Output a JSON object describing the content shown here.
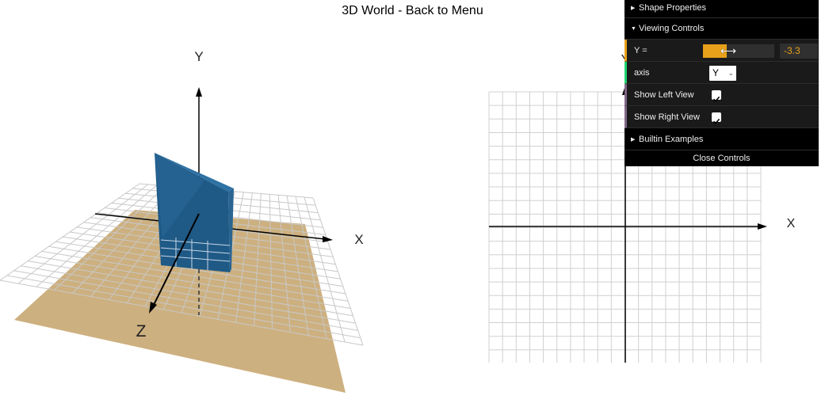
{
  "page": {
    "title": "3D World - Back to Menu"
  },
  "left_view": {
    "axis_labels": {
      "x": "X",
      "y": "Y",
      "z": "Z"
    },
    "colors": {
      "shape": "#2a6592",
      "plane": "#cdb07f",
      "grid": "#c8c8c8"
    }
  },
  "right_view": {
    "axis_labels": {
      "x": "X",
      "y": "Y"
    },
    "colors": {
      "grid": "#d0d0d0",
      "axis": "#000000"
    }
  },
  "controls": {
    "shape_properties_label": "Shape Properties",
    "viewing_controls_label": "Viewing Controls",
    "y_label": "Y =",
    "y_value": "-3.3",
    "y_slider_fraction": 0.33,
    "axis_label": "axis",
    "axis_value": "Y",
    "show_left_label": "Show Left View",
    "show_left_checked": true,
    "show_right_label": "Show Right View",
    "show_right_checked": true,
    "builtin_examples_label": "Builtin Examples",
    "close_label": "Close Controls",
    "accent_color": "#e8a01a"
  }
}
